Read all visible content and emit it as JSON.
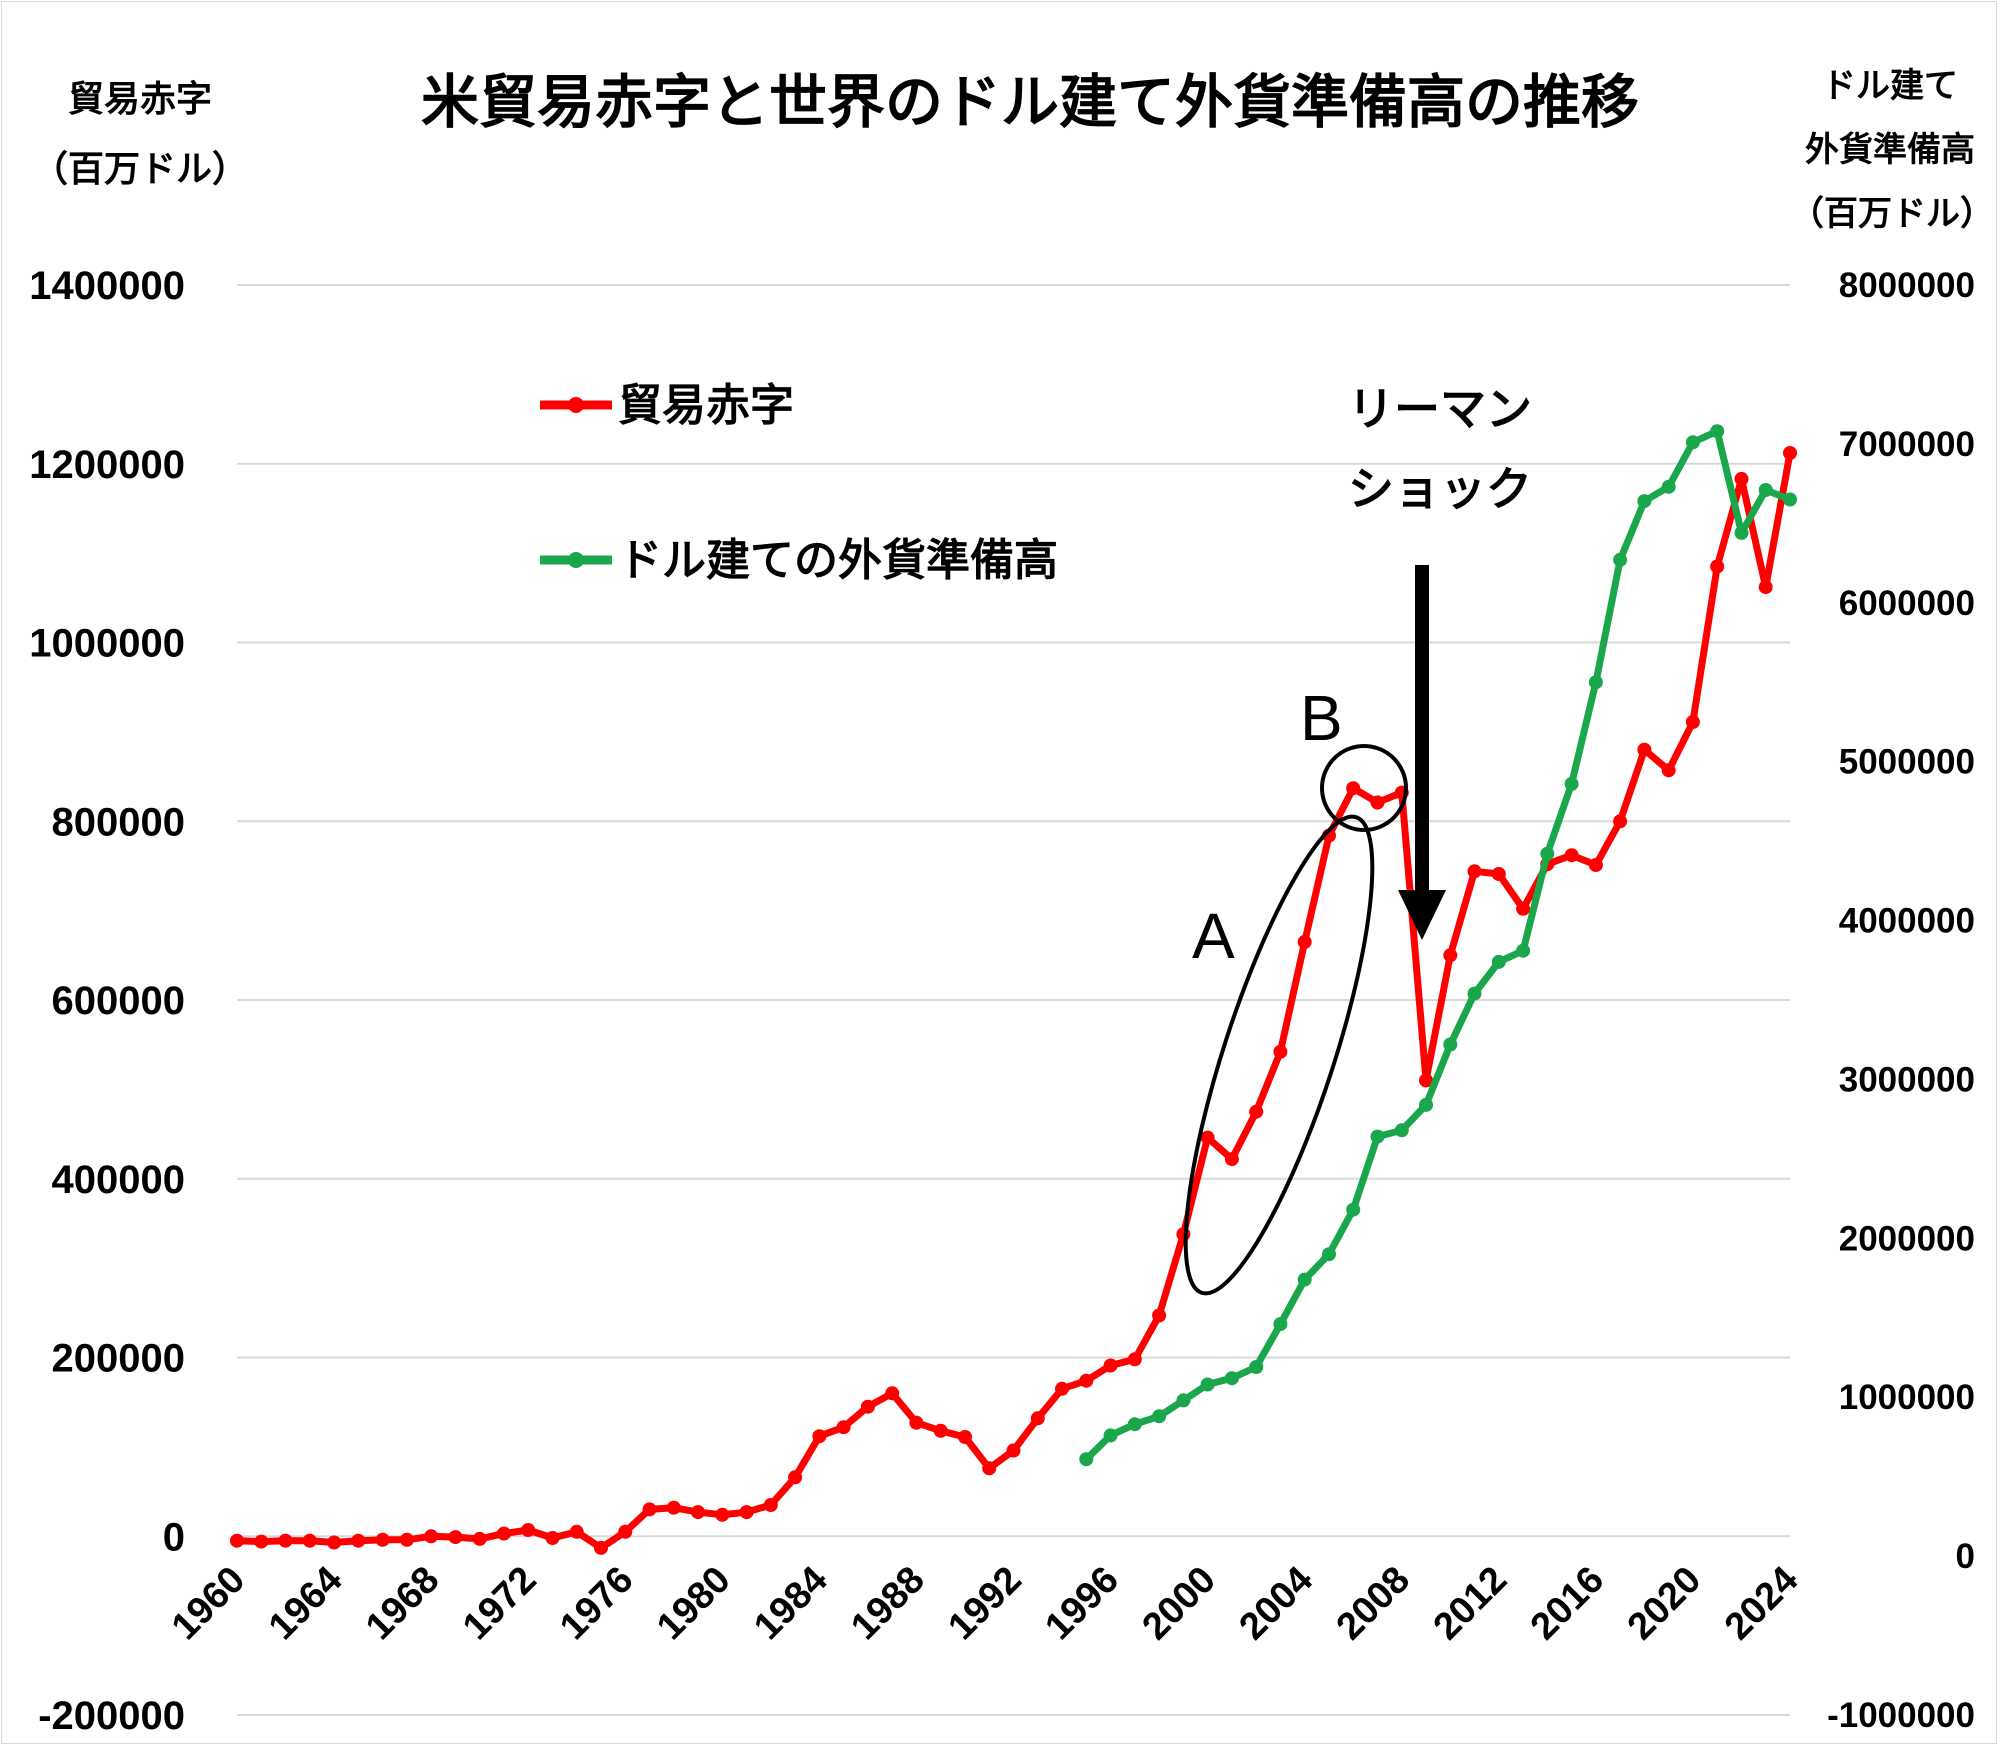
{
  "chart_data": {
    "type": "line",
    "title": "米貿易赤字と世界のドル建て外貨準備高の推移",
    "left_axis_label": [
      "貿易赤字",
      "（百万ドル）"
    ],
    "right_axis_label": [
      "ドル建て",
      "外貨準備高",
      "（百万ドル）"
    ],
    "left_ylim": [
      -200000,
      1400000
    ],
    "right_ylim": [
      -1000000,
      8000000
    ],
    "left_ticks": [
      -200000,
      0,
      200000,
      400000,
      600000,
      800000,
      1000000,
      1200000,
      1400000
    ],
    "right_ticks": [
      -1000000,
      0,
      1000000,
      2000000,
      3000000,
      4000000,
      5000000,
      6000000,
      7000000,
      8000000
    ],
    "xlim": [
      1960,
      2024
    ],
    "x_ticks": [
      1960,
      1964,
      1968,
      1972,
      1976,
      1980,
      1984,
      1988,
      1992,
      1996,
      2000,
      2004,
      2008,
      2012,
      2016,
      2020,
      2024
    ],
    "grid": true,
    "legend_position": "upper-left",
    "series": [
      {
        "name": "貿易赤字",
        "axis": "left",
        "color": "#ff0000",
        "x": [
          1960,
          1961,
          1962,
          1963,
          1964,
          1965,
          1966,
          1967,
          1968,
          1969,
          1970,
          1971,
          1972,
          1973,
          1974,
          1975,
          1976,
          1977,
          1978,
          1979,
          1980,
          1981,
          1982,
          1983,
          1984,
          1985,
          1986,
          1987,
          1988,
          1989,
          1990,
          1991,
          1992,
          1993,
          1994,
          1995,
          1996,
          1997,
          1998,
          1999,
          2000,
          2001,
          2002,
          2003,
          2004,
          2005,
          2006,
          2007,
          2008,
          2009,
          2010,
          2011,
          2012,
          2013,
          2014,
          2015,
          2016,
          2017,
          2018,
          2019,
          2020,
          2021,
          2022,
          2023,
          2024
        ],
        "values": [
          -5000,
          -6000,
          -5000,
          -5000,
          -7000,
          -5000,
          -4000,
          -4000,
          0,
          -1000,
          -3000,
          3000,
          7000,
          -2000,
          5000,
          -13000,
          5000,
          30000,
          32000,
          27000,
          24000,
          27000,
          35000,
          66000,
          112000,
          122000,
          145000,
          160000,
          127000,
          118000,
          111000,
          76000,
          96000,
          132000,
          165000,
          174000,
          191000,
          198000,
          247000,
          338000,
          446000,
          422000,
          475000,
          542000,
          665000,
          784000,
          837000,
          821000,
          832000,
          510000,
          650000,
          744000,
          741000,
          702000,
          752000,
          762000,
          751000,
          800000,
          880000,
          857000,
          911000,
          1085000,
          1183000,
          1062000,
          1212000
        ]
      },
      {
        "name": "ドル建ての外貨準備高",
        "axis": "right",
        "color": "#1aa64a",
        "x": [
          1995,
          1996,
          1997,
          1998,
          1999,
          2000,
          2001,
          2002,
          2003,
          2004,
          2005,
          2006,
          2007,
          2008,
          2009,
          2010,
          2011,
          2012,
          2013,
          2014,
          2015,
          2016,
          2017,
          2018,
          2019,
          2020,
          2021,
          2022,
          2023,
          2024
        ],
        "values": [
          610000,
          760000,
          830000,
          880000,
          980000,
          1080000,
          1120000,
          1190000,
          1460000,
          1740000,
          1900000,
          2180000,
          2640000,
          2680000,
          2840000,
          3220000,
          3540000,
          3740000,
          3810000,
          4420000,
          4860000,
          5500000,
          6270000,
          6640000,
          6730000,
          7010000,
          7080000,
          6440000,
          6710000,
          6650000
        ]
      }
    ],
    "annotations": [
      {
        "text": "A"
      },
      {
        "text": "B"
      },
      {
        "text": "リーマン"
      },
      {
        "text": "ショック"
      }
    ]
  }
}
